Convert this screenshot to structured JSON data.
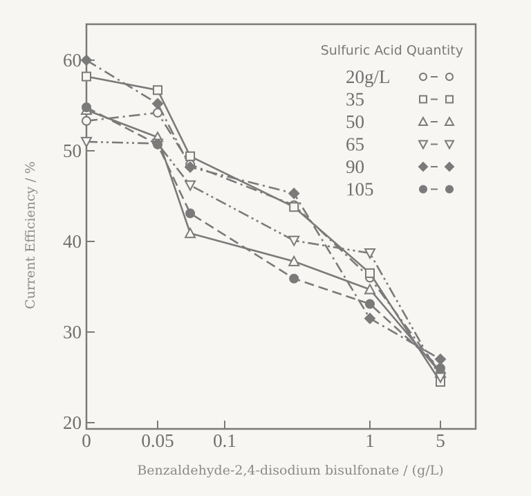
{
  "chart_data": {
    "type": "line",
    "title": "",
    "xlabel": "Benzaldehyde-2,4-disodium bisulfonate / (g/L)",
    "ylabel": "Current Efficiency / %",
    "x_ticks": [
      0,
      0.05,
      0.1,
      1,
      5
    ],
    "x_tick_labels": [
      "0",
      "0.05",
      "0.1",
      "1",
      "5"
    ],
    "y_ticks": [
      20,
      30,
      40,
      50,
      60
    ],
    "y_tick_labels": [
      "20",
      "30",
      "40",
      "50",
      "60"
    ],
    "ylim": [
      20,
      64
    ],
    "x_scale": "log (0 at origin)",
    "grid": false,
    "legend_title": "Sulfuric Acid Quantity",
    "legend_placement": "top-right",
    "color": "#7a7a7a",
    "x": [
      0,
      0.05,
      0.07,
      0.3,
      1,
      5
    ],
    "series": [
      {
        "name": "20g/L",
        "marker": "circle-open",
        "dash": "dash-dot",
        "values": [
          53.3,
          54.2,
          48.5,
          44.0,
          36.0,
          25.5
        ]
      },
      {
        "name": "35",
        "marker": "square-open",
        "dash": "solid",
        "values": [
          58.2,
          56.7,
          49.4,
          43.8,
          36.5,
          24.5
        ]
      },
      {
        "name": "50",
        "marker": "triangle-up-open",
        "dash": "solid",
        "values": [
          54.5,
          51.5,
          40.9,
          37.8,
          34.7,
          25.5
        ]
      },
      {
        "name": "65",
        "marker": "triangle-down-open",
        "dash": "dash-dot-dot",
        "values": [
          51.0,
          50.8,
          46.2,
          40.1,
          38.7,
          25.0
        ]
      },
      {
        "name": "90",
        "marker": "diamond-filled",
        "dash": "dash-dot",
        "values": [
          60.0,
          55.2,
          48.2,
          45.3,
          31.5,
          27.0
        ]
      },
      {
        "name": "105",
        "marker": "circle-filled",
        "dash": "dashed",
        "values": [
          54.8,
          50.7,
          43.1,
          35.9,
          33.1,
          26.0
        ]
      }
    ]
  }
}
